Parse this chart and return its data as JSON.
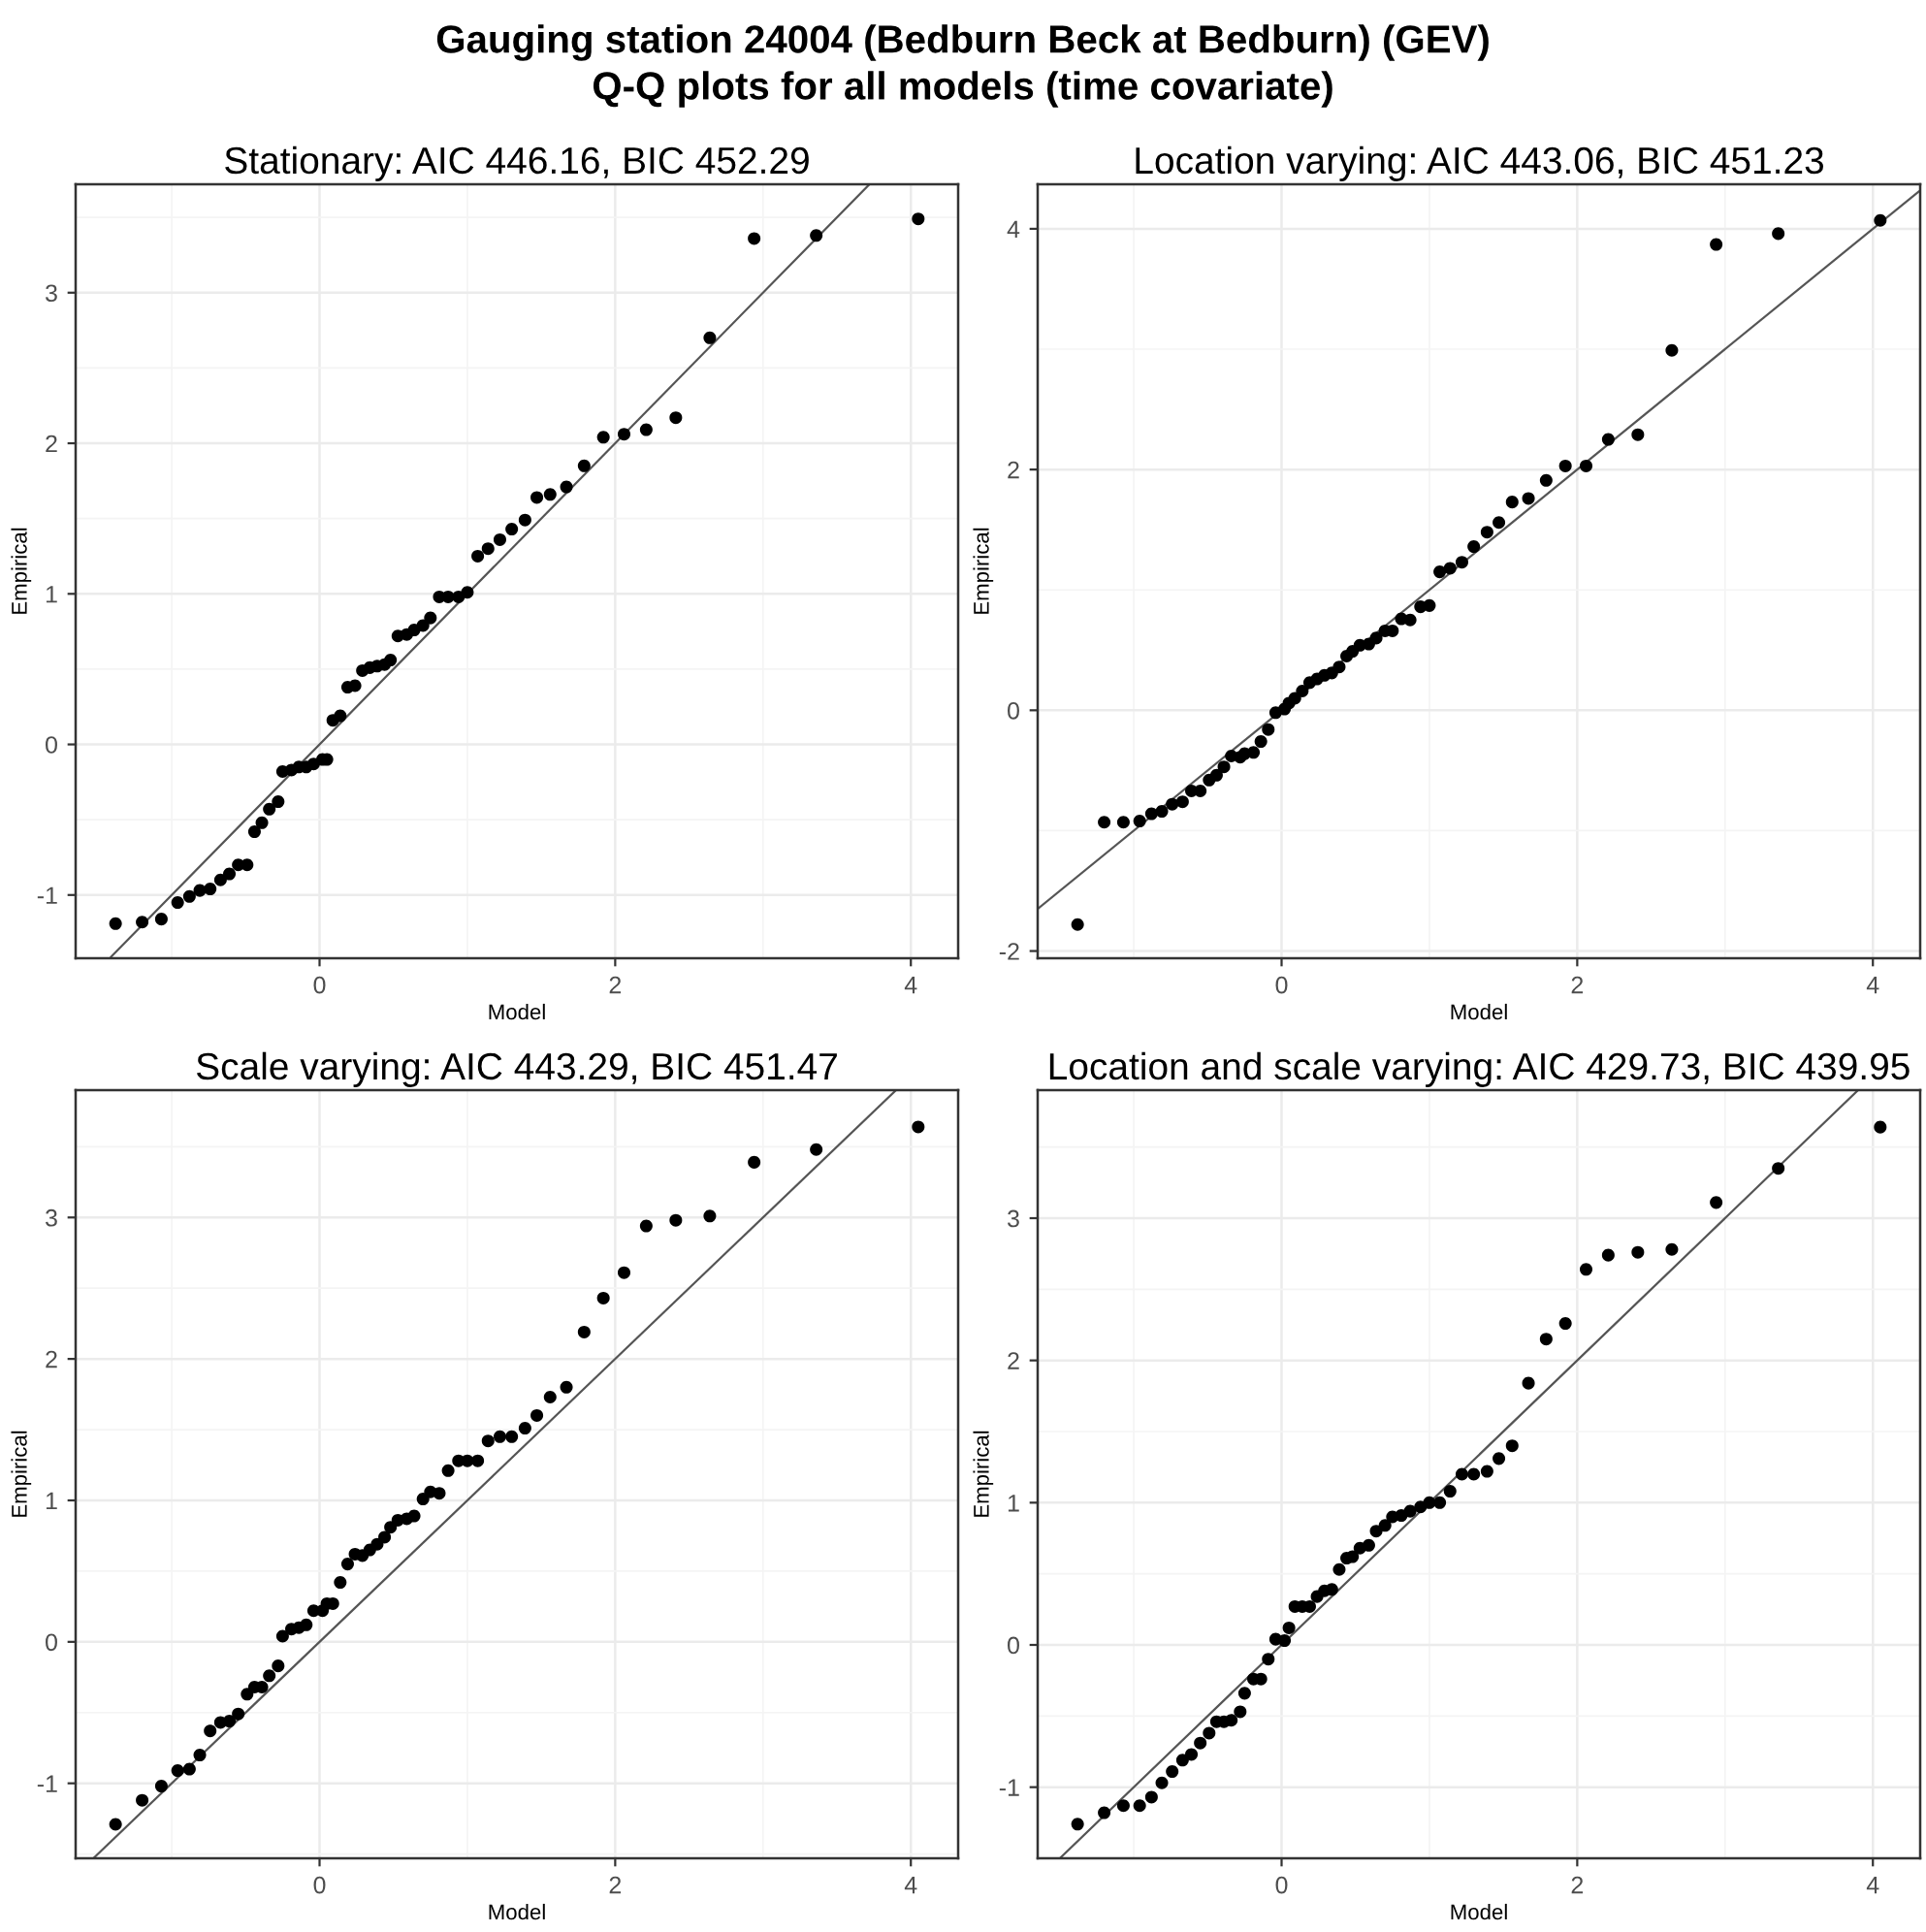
{
  "chart_data": [
    {
      "type": "scatter",
      "title": "Stationary: AIC 446.16, BIC 452.29",
      "xlabel": "Model",
      "ylabel": "Empirical",
      "annotations": [
        "Gauging station 24004 (Bedburn Beck at Bedburn) (GEV)",
        "Q-Q plots for all models (time covariate)"
      ],
      "xlim": [
        -1.65,
        4.32
      ],
      "ylim": [
        -1.42,
        3.72
      ],
      "xticks": [
        0,
        2,
        4
      ],
      "yticks": [
        -1,
        0,
        1,
        2,
        3
      ],
      "grid": true,
      "x": [
        -1.38,
        -1.2,
        -1.07,
        -0.96,
        -0.88,
        -0.81,
        -0.74,
        -0.67,
        -0.61,
        -0.55,
        -0.49,
        -0.44,
        -0.39,
        -0.34,
        -0.28,
        -0.25,
        -0.19,
        -0.14,
        -0.09,
        -0.04,
        0.02,
        0.05,
        0.09,
        0.14,
        0.19,
        0.24,
        0.29,
        0.34,
        0.39,
        0.44,
        0.48,
        0.53,
        0.59,
        0.64,
        0.7,
        0.75,
        0.81,
        0.87,
        0.94,
        1.0,
        1.07,
        1.14,
        1.22,
        1.3,
        1.39,
        1.47,
        1.56,
        1.67,
        1.79,
        1.92,
        2.06,
        2.21,
        2.41,
        2.64,
        2.94,
        3.36,
        4.05
      ],
      "series": [
        {
          "marker": "circle",
          "color": "#000000",
          "values": [
            -1.19,
            -1.18,
            -1.16,
            -1.05,
            -1.01,
            -0.97,
            -0.96,
            -0.9,
            -0.86,
            -0.8,
            -0.8,
            -0.58,
            -0.52,
            -0.43,
            -0.38,
            -0.18,
            -0.17,
            -0.15,
            -0.15,
            -0.13,
            -0.1,
            -0.1,
            0.16,
            0.19,
            0.38,
            0.39,
            0.49,
            0.51,
            0.52,
            0.53,
            0.56,
            0.72,
            0.73,
            0.76,
            0.79,
            0.84,
            0.98,
            0.98,
            0.98,
            1.01,
            1.25,
            1.3,
            1.36,
            1.43,
            1.49,
            1.64,
            1.66,
            1.71,
            1.85,
            2.04,
            2.06,
            2.09,
            2.17,
            2.7,
            3.36,
            3.38,
            3.49
          ]
        },
        {
          "type": "line",
          "color": "#555555",
          "line_style": "solid",
          "x": [
            -1.41,
            3.72
          ],
          "values": [
            -1.41,
            3.72
          ]
        }
      ]
    },
    {
      "type": "scatter",
      "title": "Location varying: AIC 443.06, BIC 451.23",
      "xlabel": "Model",
      "ylabel": "Empirical",
      "xlim": [
        -1.65,
        4.32
      ],
      "ylim": [
        -2.06,
        4.37
      ],
      "xticks": [
        0,
        2,
        4
      ],
      "yticks": [
        -2,
        0,
        2,
        4
      ],
      "grid": true,
      "x": [
        -1.38,
        -1.2,
        -1.07,
        -0.96,
        -0.88,
        -0.81,
        -0.74,
        -0.67,
        -0.61,
        -0.55,
        -0.49,
        -0.44,
        -0.39,
        -0.34,
        -0.28,
        -0.25,
        -0.19,
        -0.14,
        -0.09,
        -0.04,
        0.02,
        0.05,
        0.09,
        0.14,
        0.19,
        0.24,
        0.29,
        0.34,
        0.39,
        0.44,
        0.48,
        0.53,
        0.59,
        0.64,
        0.7,
        0.75,
        0.81,
        0.87,
        0.94,
        1.0,
        1.07,
        1.14,
        1.22,
        1.3,
        1.39,
        1.47,
        1.56,
        1.67,
        1.79,
        1.92,
        2.06,
        2.21,
        2.41,
        2.64,
        2.94,
        3.36,
        4.05
      ],
      "series": [
        {
          "marker": "circle",
          "color": "#000000",
          "values": [
            -1.78,
            -0.93,
            -0.93,
            -0.92,
            -0.86,
            -0.84,
            -0.78,
            -0.76,
            -0.67,
            -0.67,
            -0.58,
            -0.54,
            -0.47,
            -0.38,
            -0.39,
            -0.36,
            -0.35,
            -0.26,
            -0.16,
            -0.02,
            0.01,
            0.06,
            0.1,
            0.16,
            0.23,
            0.26,
            0.29,
            0.31,
            0.36,
            0.45,
            0.49,
            0.54,
            0.55,
            0.6,
            0.66,
            0.66,
            0.76,
            0.75,
            0.86,
            0.87,
            1.15,
            1.18,
            1.23,
            1.36,
            1.48,
            1.56,
            1.73,
            1.76,
            1.91,
            2.03,
            2.03,
            2.25,
            2.29,
            2.99,
            3.87,
            3.96,
            4.07
          ]
        },
        {
          "type": "line",
          "color": "#555555",
          "line_style": "solid",
          "x": [
            -1.65,
            4.31
          ],
          "values": [
            -1.65,
            4.31
          ]
        }
      ]
    },
    {
      "type": "scatter",
      "title": "Scale varying: AIC 443.29, BIC 451.47",
      "xlabel": "Model",
      "ylabel": "Empirical",
      "xlim": [
        -1.65,
        4.32
      ],
      "ylim": [
        -1.53,
        3.9
      ],
      "xticks": [
        0,
        2,
        4
      ],
      "yticks": [
        -1,
        0,
        1,
        2,
        3
      ],
      "grid": true,
      "x": [
        -1.38,
        -1.2,
        -1.07,
        -0.96,
        -0.88,
        -0.81,
        -0.74,
        -0.67,
        -0.61,
        -0.55,
        -0.49,
        -0.44,
        -0.39,
        -0.34,
        -0.28,
        -0.25,
        -0.19,
        -0.14,
        -0.09,
        -0.04,
        0.02,
        0.05,
        0.09,
        0.14,
        0.19,
        0.24,
        0.29,
        0.34,
        0.39,
        0.44,
        0.48,
        0.53,
        0.59,
        0.64,
        0.7,
        0.75,
        0.81,
        0.87,
        0.94,
        1.0,
        1.07,
        1.14,
        1.22,
        1.3,
        1.39,
        1.47,
        1.56,
        1.67,
        1.79,
        1.92,
        2.06,
        2.21,
        2.41,
        2.64,
        2.94,
        3.36,
        4.05
      ],
      "series": [
        {
          "marker": "circle",
          "color": "#000000",
          "values": [
            -1.29,
            -1.12,
            -1.02,
            -0.91,
            -0.9,
            -0.8,
            -0.63,
            -0.57,
            -0.56,
            -0.51,
            -0.37,
            -0.32,
            -0.32,
            -0.24,
            -0.17,
            0.04,
            0.09,
            0.1,
            0.12,
            0.22,
            0.22,
            0.27,
            0.27,
            0.42,
            0.55,
            0.62,
            0.61,
            0.65,
            0.69,
            0.74,
            0.81,
            0.86,
            0.87,
            0.89,
            1.01,
            1.06,
            1.05,
            1.21,
            1.28,
            1.28,
            1.28,
            1.42,
            1.45,
            1.45,
            1.51,
            1.6,
            1.73,
            1.8,
            2.19,
            2.43,
            2.61,
            2.94,
            2.98,
            3.01,
            3.39,
            3.48,
            3.64
          ]
        },
        {
          "type": "line",
          "color": "#555555",
          "line_style": "solid",
          "x": [
            -1.53,
            3.9
          ],
          "values": [
            -1.53,
            3.9
          ]
        }
      ]
    },
    {
      "type": "scatter",
      "title": "Location and scale varying: AIC 429.73, BIC 439.95",
      "xlabel": "Model",
      "ylabel": "Empirical",
      "xlim": [
        -1.65,
        4.32
      ],
      "ylim": [
        -1.5,
        3.9
      ],
      "xticks": [
        0,
        2,
        4
      ],
      "yticks": [
        -1,
        0,
        1,
        2,
        3
      ],
      "grid": true,
      "x": [
        -1.38,
        -1.2,
        -1.07,
        -0.96,
        -0.88,
        -0.81,
        -0.74,
        -0.67,
        -0.61,
        -0.55,
        -0.49,
        -0.44,
        -0.39,
        -0.34,
        -0.28,
        -0.25,
        -0.19,
        -0.14,
        -0.09,
        -0.04,
        0.02,
        0.05,
        0.09,
        0.14,
        0.19,
        0.24,
        0.29,
        0.34,
        0.39,
        0.44,
        0.48,
        0.53,
        0.59,
        0.64,
        0.7,
        0.75,
        0.81,
        0.87,
        0.94,
        1.0,
        1.07,
        1.14,
        1.22,
        1.3,
        1.39,
        1.47,
        1.56,
        1.67,
        1.79,
        1.92,
        2.06,
        2.21,
        2.41,
        2.64,
        2.94,
        3.36,
        4.05
      ],
      "series": [
        {
          "marker": "circle",
          "color": "#000000",
          "values": [
            -1.26,
            -1.18,
            -1.13,
            -1.13,
            -1.07,
            -0.97,
            -0.89,
            -0.81,
            -0.77,
            -0.69,
            -0.62,
            -0.54,
            -0.54,
            -0.53,
            -0.47,
            -0.34,
            -0.24,
            -0.24,
            -0.1,
            0.04,
            0.03,
            0.12,
            0.27,
            0.27,
            0.27,
            0.34,
            0.38,
            0.39,
            0.53,
            0.61,
            0.62,
            0.68,
            0.7,
            0.8,
            0.84,
            0.9,
            0.91,
            0.94,
            0.97,
            1.0,
            1.0,
            1.08,
            1.2,
            1.2,
            1.22,
            1.31,
            1.4,
            1.84,
            2.15,
            2.26,
            2.64,
            2.74,
            2.76,
            2.78,
            3.11,
            3.35,
            3.64
          ]
        },
        {
          "type": "line",
          "color": "#555555",
          "line_style": "solid",
          "x": [
            -1.5,
            3.9
          ],
          "values": [
            -1.5,
            3.9
          ]
        }
      ]
    }
  ]
}
